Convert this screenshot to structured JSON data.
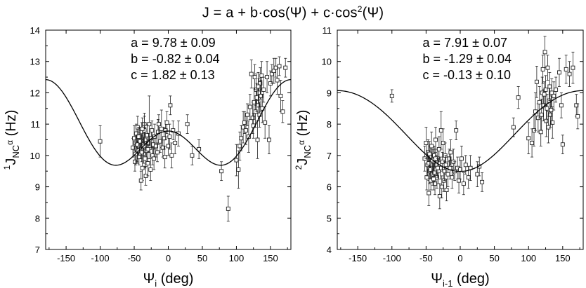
{
  "figure": {
    "title_prefix": "J = a + b·cos(Ψ) + c·cos",
    "title_sup": "2",
    "title_suffix": "(Ψ)"
  },
  "chart_data": [
    {
      "type": "scatter",
      "title": "",
      "ylabel_pre": "1",
      "ylabel_main": "J",
      "ylabel_sub": "NC",
      "ylabel_subsup": "α",
      "ylabel_unit": " (Hz)",
      "xlabel_main": "Ψ",
      "xlabel_sub": "i",
      "xlabel_unit": " (deg)",
      "xlim": [
        -180,
        180
      ],
      "ylim": [
        7,
        14
      ],
      "xticks": [
        -150,
        -100,
        -50,
        0,
        50,
        100,
        150
      ],
      "yticks": [
        7,
        8,
        9,
        10,
        11,
        12,
        13,
        14
      ],
      "fit": {
        "a": 9.78,
        "b": -0.82,
        "c": 1.82
      },
      "annotations": [
        "a = 9.78 ± 0.09",
        "b = -0.82 ± 0.04",
        "c = 1.82 ± 0.13"
      ],
      "points": [
        [
          -100,
          10.45,
          0.5
        ],
        [
          -52,
          10.25,
          0.3
        ],
        [
          -50,
          10.55,
          0.4
        ],
        [
          -49,
          9.8,
          0.3
        ],
        [
          -48,
          10.4,
          0.25
        ],
        [
          -47,
          10.7,
          0.3
        ],
        [
          -46,
          10.1,
          0.3
        ],
        [
          -45,
          10.9,
          0.35
        ],
        [
          -44,
          10.3,
          0.3
        ],
        [
          -43,
          9.95,
          0.25
        ],
        [
          -42,
          10.6,
          0.3
        ],
        [
          -41,
          10.45,
          0.35
        ],
        [
          -40,
          10.2,
          0.3
        ],
        [
          -39,
          10.75,
          0.3
        ],
        [
          -38,
          9.6,
          0.4
        ],
        [
          -37,
          10.35,
          0.3
        ],
        [
          -36,
          10.05,
          0.3
        ],
        [
          -35,
          11.0,
          0.35
        ],
        [
          -34,
          10.5,
          0.4
        ],
        [
          -33,
          9.35,
          0.3
        ],
        [
          -32,
          10.15,
          0.3
        ],
        [
          -31,
          10.65,
          0.35
        ],
        [
          -30,
          9.75,
          0.4
        ],
        [
          -29,
          10.4,
          0.3
        ],
        [
          -28,
          11.0,
          0.9
        ],
        [
          -27,
          10.25,
          0.35
        ],
        [
          -26,
          9.55,
          0.35
        ],
        [
          -25,
          10.55,
          0.3
        ],
        [
          -24,
          10.8,
          0.3
        ],
        [
          -23,
          10.0,
          0.3
        ],
        [
          -22,
          10.35,
          0.3
        ],
        [
          -21,
          9.9,
          0.35
        ],
        [
          -20,
          10.6,
          0.4
        ],
        [
          -18,
          10.3,
          0.35
        ],
        [
          -16,
          10.1,
          0.3
        ],
        [
          -15,
          10.75,
          0.4
        ],
        [
          -14,
          11.0,
          0.3
        ],
        [
          -12,
          10.45,
          0.35
        ],
        [
          -10,
          10.85,
          0.6
        ],
        [
          -8,
          10.25,
          0.3
        ],
        [
          -6,
          10.55,
          0.35
        ],
        [
          -4,
          10.8,
          0.3
        ],
        [
          -2,
          11.05,
          0.35
        ],
        [
          0,
          10.3,
          0.3
        ],
        [
          2,
          10.6,
          0.4
        ],
        [
          3,
          11.6,
          0.3
        ],
        [
          5,
          10.0,
          0.4
        ],
        [
          7,
          10.8,
          0.3
        ],
        [
          10,
          10.4,
          0.35
        ],
        [
          15,
          10.7,
          0.4
        ],
        [
          -5,
          9.95,
          0.35
        ],
        [
          -40,
          9.2,
          0.3
        ],
        [
          -45,
          10.15,
          0.4
        ],
        [
          -35,
          10.8,
          0.45
        ],
        [
          -42,
          10.45,
          0.3
        ],
        [
          -38,
          10.85,
          0.35
        ],
        [
          -44,
          10.6,
          0.3
        ],
        [
          -36,
          10.3,
          0.3
        ],
        [
          -30,
          10.2,
          0.3
        ],
        [
          -46,
          10.35,
          0.3
        ],
        [
          -48,
          10.05,
          0.35
        ],
        [
          -34,
          9.9,
          0.3
        ],
        [
          -39,
          10.1,
          0.3
        ],
        [
          28,
          11.0,
          0.3
        ],
        [
          35,
          10.0,
          0.3
        ],
        [
          45,
          10.2,
          0.3
        ],
        [
          78,
          9.5,
          0.3
        ],
        [
          88,
          8.3,
          0.4
        ],
        [
          100,
          9.85,
          0.5
        ],
        [
          103,
          9.55,
          0.6
        ],
        [
          105,
          10.3,
          0.45
        ],
        [
          107,
          10.55,
          0.4
        ],
        [
          110,
          10.9,
          0.5
        ],
        [
          112,
          11.05,
          0.35
        ],
        [
          114,
          10.8,
          0.45
        ],
        [
          116,
          11.3,
          0.35
        ],
        [
          118,
          10.6,
          0.5
        ],
        [
          120,
          11.55,
          0.4
        ],
        [
          122,
          12.6,
          0.45
        ],
        [
          124,
          11.2,
          0.5
        ],
        [
          125,
          10.95,
          0.4
        ],
        [
          126,
          11.7,
          0.45
        ],
        [
          128,
          11.4,
          0.5
        ],
        [
          129,
          12.1,
          0.5
        ],
        [
          130,
          11.85,
          0.45
        ],
        [
          131,
          10.5,
          0.6
        ],
        [
          132,
          11.6,
          0.5
        ],
        [
          133,
          12.0,
          0.45
        ],
        [
          134,
          11.3,
          0.4
        ],
        [
          135,
          12.3,
          0.5
        ],
        [
          136,
          11.9,
          0.5
        ],
        [
          137,
          12.55,
          0.45
        ],
        [
          138,
          11.5,
          0.45
        ],
        [
          140,
          12.1,
          0.4
        ],
        [
          142,
          11.05,
          0.5
        ],
        [
          145,
          12.5,
          0.5
        ],
        [
          148,
          10.5,
          0.45
        ],
        [
          150,
          12.3,
          0.4
        ],
        [
          152,
          12.6,
          0.3
        ],
        [
          155,
          12.7,
          0.4
        ],
        [
          158,
          12.8,
          0.3
        ],
        [
          160,
          12.4,
          0.45
        ],
        [
          163,
          12.85,
          0.3
        ],
        [
          165,
          11.9,
          0.5
        ],
        [
          168,
          11.4,
          0.35
        ],
        [
          172,
          12.8,
          0.3
        ],
        [
          127,
          12.5,
          0.4
        ],
        [
          132,
          12.2,
          0.45
        ]
      ]
    },
    {
      "type": "scatter",
      "title": "",
      "ylabel_pre": "2",
      "ylabel_main": "J",
      "ylabel_sub": "NC",
      "ylabel_subsup": "α",
      "ylabel_unit": " (Hz)",
      "xlabel_main": "Ψ",
      "xlabel_sub": "i-1",
      "xlabel_unit": " (deg)",
      "xlim": [
        -180,
        180
      ],
      "ylim": [
        4,
        11
      ],
      "xticks": [
        -150,
        -100,
        -50,
        0,
        50,
        100,
        150
      ],
      "yticks": [
        4,
        5,
        6,
        7,
        8,
        9,
        10,
        11
      ],
      "fit": {
        "a": 7.91,
        "b": -1.29,
        "c": -0.13
      },
      "annotations": [
        "a = 7.91 ± 0.07",
        "b = -1.29 ± 0.04",
        "c = -0.13 ± 0.10"
      ],
      "points": [
        [
          -100,
          8.9,
          0.2
        ],
        [
          -52,
          6.9,
          0.4
        ],
        [
          -50,
          7.4,
          0.5
        ],
        [
          -49,
          6.3,
          0.4
        ],
        [
          -48,
          6.7,
          0.35
        ],
        [
          -47,
          7.1,
          0.4
        ],
        [
          -46,
          5.8,
          0.4
        ],
        [
          -45,
          6.5,
          0.4
        ],
        [
          -44,
          6.95,
          0.35
        ],
        [
          -43,
          6.2,
          0.3
        ],
        [
          -42,
          7.3,
          0.45
        ],
        [
          -41,
          6.6,
          0.3
        ],
        [
          -40,
          6.4,
          0.35
        ],
        [
          -39,
          6.8,
          0.4
        ],
        [
          -38,
          7.0,
          0.3
        ],
        [
          -37,
          6.1,
          0.35
        ],
        [
          -36,
          7.5,
          0.4
        ],
        [
          -35,
          6.7,
          0.3
        ],
        [
          -34,
          6.3,
          0.35
        ],
        [
          -33,
          6.9,
          0.3
        ],
        [
          -32,
          6.5,
          0.4
        ],
        [
          -31,
          7.2,
          0.4
        ],
        [
          -30,
          5.7,
          0.4
        ],
        [
          -29,
          6.6,
          0.35
        ],
        [
          -28,
          7.8,
          0.6
        ],
        [
          -27,
          6.0,
          0.35
        ],
        [
          -26,
          6.8,
          0.3
        ],
        [
          -25,
          7.4,
          0.45
        ],
        [
          -24,
          6.2,
          0.35
        ],
        [
          -23,
          6.5,
          0.3
        ],
        [
          -22,
          7.0,
          0.4
        ],
        [
          -21,
          6.7,
          0.3
        ],
        [
          -20,
          5.9,
          0.35
        ],
        [
          -18,
          6.4,
          0.4
        ],
        [
          -16,
          6.9,
          0.3
        ],
        [
          -15,
          6.6,
          0.35
        ],
        [
          -14,
          7.1,
          0.4
        ],
        [
          -12,
          6.3,
          0.35
        ],
        [
          -10,
          6.8,
          0.4
        ],
        [
          -8,
          6.5,
          0.3
        ],
        [
          -6,
          7.8,
          0.3
        ],
        [
          -4,
          6.6,
          0.35
        ],
        [
          -2,
          6.2,
          0.4
        ],
        [
          0,
          6.55,
          0.3
        ],
        [
          2,
          6.9,
          0.4
        ],
        [
          5,
          6.1,
          0.35
        ],
        [
          8,
          6.7,
          0.3
        ],
        [
          12,
          6.3,
          0.35
        ],
        [
          15,
          6.6,
          0.4
        ],
        [
          -44,
          6.55,
          0.3
        ],
        [
          -41,
          6.85,
          0.35
        ],
        [
          -38,
          6.45,
          0.3
        ],
        [
          -46,
          6.75,
          0.35
        ],
        [
          -36,
          6.9,
          0.3
        ],
        [
          -33,
          6.6,
          0.3
        ],
        [
          -45,
          7.05,
          0.4
        ],
        [
          -39,
          6.25,
          0.35
        ],
        [
          25,
          6.4,
          0.4
        ],
        [
          28,
          6.65,
          0.3
        ],
        [
          32,
          6.15,
          0.3
        ],
        [
          78,
          7.9,
          0.3
        ],
        [
          85,
          8.85,
          0.35
        ],
        [
          100,
          7.55,
          0.5
        ],
        [
          105,
          7.4,
          0.45
        ],
        [
          108,
          7.8,
          0.5
        ],
        [
          110,
          8.4,
          0.6
        ],
        [
          112,
          9.35,
          0.5
        ],
        [
          114,
          8.2,
          0.45
        ],
        [
          116,
          8.7,
          0.5
        ],
        [
          118,
          7.75,
          0.45
        ],
        [
          119,
          8.3,
          0.5
        ],
        [
          120,
          9.0,
          0.5
        ],
        [
          121,
          9.75,
          0.45
        ],
        [
          122,
          8.6,
          0.5
        ],
        [
          124,
          10.3,
          0.5
        ],
        [
          125,
          9.1,
          0.45
        ],
        [
          126,
          8.1,
          0.5
        ],
        [
          127,
          8.5,
          0.45
        ],
        [
          128,
          9.8,
          0.4
        ],
        [
          129,
          7.9,
          0.5
        ],
        [
          130,
          8.75,
          0.5
        ],
        [
          131,
          9.2,
          0.45
        ],
        [
          132,
          8.3,
          0.4
        ],
        [
          134,
          9.0,
          0.45
        ],
        [
          135,
          8.05,
          0.5
        ],
        [
          137,
          8.9,
          0.45
        ],
        [
          140,
          9.1,
          0.4
        ],
        [
          145,
          9.65,
          0.45
        ],
        [
          148,
          8.6,
          0.4
        ],
        [
          150,
          7.35,
          0.3
        ],
        [
          155,
          9.75,
          0.45
        ],
        [
          160,
          9.6,
          0.4
        ],
        [
          165,
          9.8,
          0.5
        ],
        [
          170,
          8.6,
          0.35
        ],
        [
          172,
          8.25,
          0.4
        ],
        [
          123,
          8.95,
          0.4
        ],
        [
          133,
          8.45,
          0.45
        ]
      ]
    }
  ]
}
